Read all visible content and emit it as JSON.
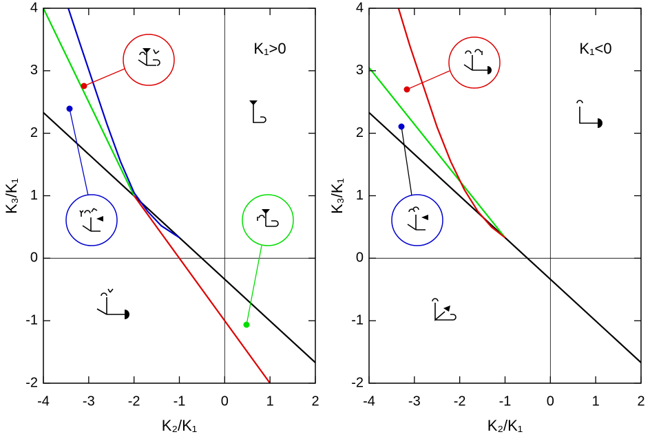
{
  "chart_data": [
    {
      "type": "line",
      "annotation": "K₁>0",
      "xlabel": "K₂/K₁",
      "ylabel": "K₃/K₁",
      "xlim": [
        -4,
        2
      ],
      "ylim": [
        -2,
        4
      ],
      "xticks": [
        -4,
        -3,
        -2,
        -1,
        0,
        1,
        2
      ],
      "yticks": [
        -2,
        -1,
        0,
        1,
        2,
        3,
        4
      ],
      "zero_lines": true,
      "series": [
        {
          "color": "#000000",
          "x": [
            -4,
            2
          ],
          "values": [
            2.33,
            -1.67
          ]
        },
        {
          "color": "#00dd00",
          "x": [
            -4,
            -2
          ],
          "values": [
            4,
            1
          ]
        },
        {
          "color": "#dd0000",
          "x": [
            -2,
            1
          ],
          "values": [
            1,
            -2
          ]
        },
        {
          "color": "#0000cc",
          "x": [
            -3.45,
            -3.2,
            -2.9,
            -2.6,
            -2.3,
            -2,
            -1.7,
            -1.4,
            -1
          ],
          "values": [
            4,
            3.45,
            2.8,
            2.15,
            1.55,
            1.05,
            0.75,
            0.52,
            0.33
          ]
        }
      ]
    },
    {
      "type": "line",
      "annotation": "K₁<0",
      "xlabel": "K₂/K₁",
      "ylabel": "K₃/K₁",
      "xlim": [
        -4,
        2
      ],
      "ylim": [
        -2,
        4
      ],
      "xticks": [
        -4,
        -3,
        -2,
        -1,
        0,
        1,
        2
      ],
      "yticks": [
        -2,
        -1,
        0,
        1,
        2,
        3,
        4
      ],
      "zero_lines": true,
      "series": [
        {
          "color": "#000000",
          "x": [
            -4,
            2
          ],
          "values": [
            2.33,
            -1.67
          ]
        },
        {
          "color": "#00dd00",
          "x": [
            -4,
            -1
          ],
          "values": [
            3.05,
            0.33
          ]
        },
        {
          "color": "#dd0000",
          "x": [
            -3.35,
            -3.1,
            -2.8,
            -2.5,
            -2.2,
            -1.9,
            -1.6,
            -1.3,
            -1
          ],
          "values": [
            4,
            3.4,
            2.75,
            2.1,
            1.55,
            1.1,
            0.75,
            0.5,
            0.33
          ]
        }
      ]
    }
  ]
}
